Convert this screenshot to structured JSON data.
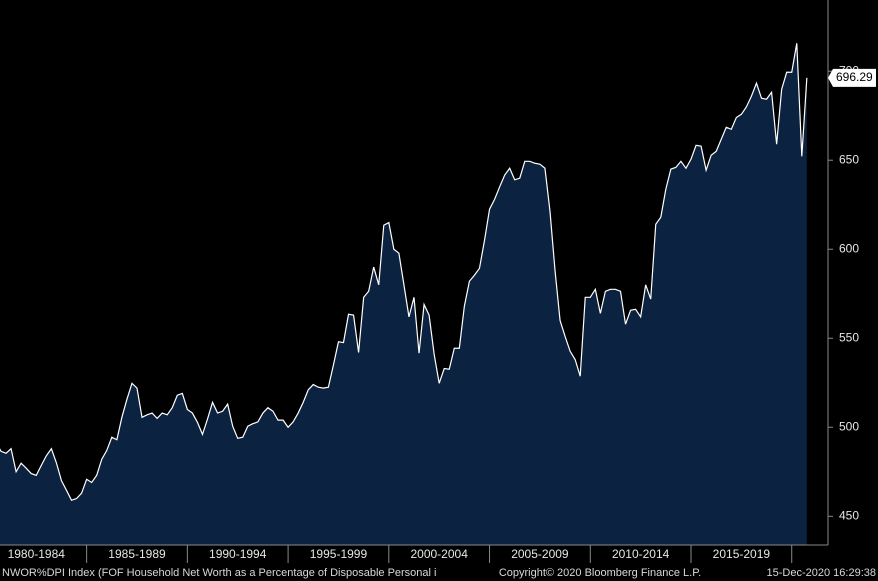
{
  "chart_data": {
    "type": "area",
    "source": "NWOR%DPI Index (FOF Household Net Worth as a Percentage of Disposable Personal i",
    "copyright": "Copyright© 2020 Bloomberg Finance L.P.",
    "timestamp": "15-Dec-2020 16:29:38",
    "color": "#0b2240",
    "line_color": "#ffffff",
    "xlim": [
      1980.7,
      2021.8
    ],
    "ylim": [
      435,
      740
    ],
    "yticks": [
      450,
      500,
      550,
      600,
      650,
      700
    ],
    "xticks": [
      {
        "value": 1980,
        "label": "1980-1984"
      },
      {
        "value": 1985,
        "label": "1985-1989"
      },
      {
        "value": 1990,
        "label": "1990-1994"
      },
      {
        "value": 1995,
        "label": "1995-1999"
      },
      {
        "value": 2000,
        "label": "2000-2004"
      },
      {
        "value": 2005,
        "label": "2005-2009"
      },
      {
        "value": 2010,
        "label": "2010-2014"
      },
      {
        "value": 2015,
        "label": "2015-2019"
      }
    ],
    "x": [
      1980.5,
      1980.75,
      1981,
      1981.25,
      1981.5,
      1981.75,
      1982,
      1982.25,
      1982.5,
      1982.75,
      1983,
      1983.25,
      1983.5,
      1983.75,
      1984,
      1984.25,
      1984.5,
      1984.75,
      1985,
      1985.25,
      1985.5,
      1985.75,
      1986,
      1986.25,
      1986.5,
      1986.75,
      1987,
      1987.25,
      1987.5,
      1987.75,
      1988,
      1988.25,
      1988.5,
      1988.75,
      1989,
      1989.25,
      1989.5,
      1989.75,
      1990,
      1990.25,
      1990.5,
      1990.75,
      1991,
      1991.25,
      1991.5,
      1991.75,
      1992,
      1992.25,
      1992.5,
      1992.75,
      1993,
      1993.25,
      1993.5,
      1993.75,
      1994,
      1994.25,
      1994.5,
      1994.75,
      1995,
      1995.25,
      1995.5,
      1995.75,
      1996,
      1996.25,
      1996.5,
      1996.75,
      1997,
      1997.25,
      1997.5,
      1997.75,
      1998,
      1998.25,
      1998.5,
      1998.75,
      1999,
      1999.25,
      1999.5,
      1999.75,
      2000,
      2000.25,
      2000.5,
      2000.75,
      2001,
      2001.25,
      2001.5,
      2001.75,
      2002,
      2002.25,
      2002.5,
      2002.75,
      2003,
      2003.25,
      2003.5,
      2003.75,
      2004,
      2004.25,
      2004.5,
      2004.75,
      2005,
      2005.25,
      2005.5,
      2005.75,
      2006,
      2006.25,
      2006.5,
      2006.75,
      2007,
      2007.25,
      2007.5,
      2007.75,
      2008,
      2008.25,
      2008.5,
      2008.75,
      2009,
      2009.25,
      2009.5,
      2009.75,
      2010,
      2010.25,
      2010.5,
      2010.75,
      2011,
      2011.25,
      2011.5,
      2011.75,
      2012,
      2012.25,
      2012.5,
      2012.75,
      2013,
      2013.25,
      2013.5,
      2013.75,
      2014,
      2014.25,
      2014.5,
      2014.75,
      2015,
      2015.25,
      2015.5,
      2015.75,
      2016,
      2016.25,
      2016.5,
      2016.75,
      2017,
      2017.25,
      2017.5,
      2017.75,
      2018,
      2018.25,
      2018.5,
      2018.75,
      2019,
      2019.25,
      2019.5,
      2019.75,
      2020,
      2020.25,
      2020.5,
      2020.75
    ],
    "values": [
      491.6,
      486.5,
      485.4,
      488,
      475,
      479.8,
      477,
      474,
      473,
      478.6,
      484,
      488,
      480,
      470,
      464.6,
      459,
      460,
      463,
      470.8,
      469,
      473,
      482,
      487,
      494.4,
      493,
      505.6,
      515.7,
      524.7,
      522,
      505.6,
      507,
      508,
      505,
      508,
      507,
      511,
      518,
      519,
      510,
      508,
      502.8,
      496,
      504.6,
      514,
      508,
      509,
      513,
      500.6,
      493.8,
      494.4,
      500.6,
      502,
      503,
      508,
      511,
      509,
      504,
      504,
      500,
      503,
      508,
      514,
      521,
      524,
      522.5,
      522,
      522.5,
      535,
      548,
      547.6,
      563.5,
      563,
      542,
      573,
      576.4,
      590,
      580,
      613.5,
      615,
      600,
      597.8,
      580,
      562,
      573,
      541.6,
      569,
      563,
      541,
      524.7,
      533,
      532.6,
      544.4,
      544.4,
      568,
      582,
      585.4,
      589.3,
      605,
      622.5,
      628,
      635,
      641.6,
      645.5,
      639,
      639.9,
      649.4,
      649.4,
      648.3,
      647.8,
      645.5,
      621.3,
      588,
      560,
      551,
      542.7,
      538,
      528.7,
      573,
      573,
      577.5,
      564,
      576.4,
      577.5,
      577.5,
      576.4,
      557.9,
      565.7,
      566.3,
      562,
      580,
      572,
      614,
      618,
      633.7,
      645,
      646,
      649.4,
      645.5,
      650.6,
      658.4,
      657.9,
      644.4,
      652.8,
      655,
      661.8,
      668.5,
      667.4,
      674,
      675.8,
      680,
      686,
      693.3,
      684.8,
      684.3,
      688.2,
      659,
      689.9,
      699.4,
      699.4,
      715.7,
      652.2,
      696.29
    ]
  }
}
